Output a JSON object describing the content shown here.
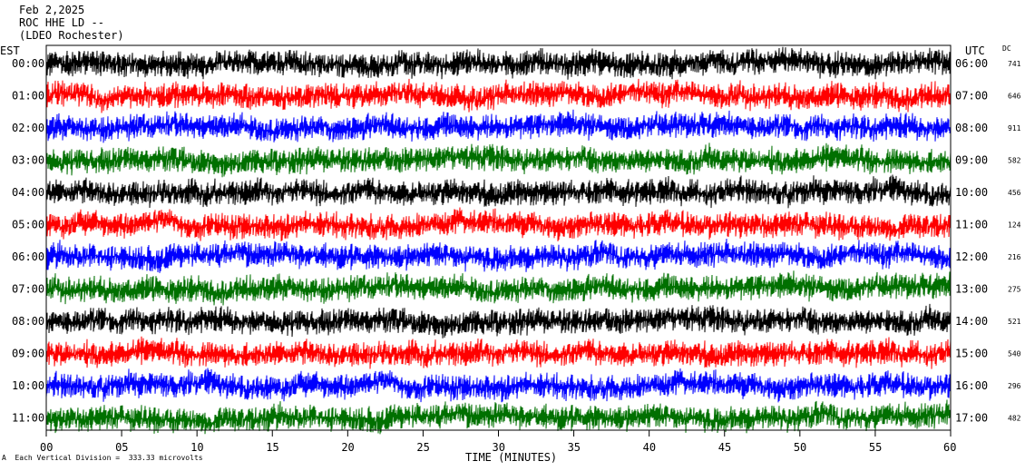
{
  "header": {
    "line1": "Feb 2,2025",
    "line2": "ROC HHE LD --",
    "line3": "(LDEO Rochester)"
  },
  "left_zone": "EST",
  "right_zone": "UTC",
  "dc_header": "DC",
  "footer": {
    "mark": "A",
    "text": "Each Vertical Division =  333.33 microvolts"
  },
  "colors": {
    "cycle": [
      "#000000",
      "#ff0000",
      "#0000ff",
      "#007000"
    ]
  },
  "chart_data": {
    "type": "line",
    "title": "Feb 2,2025 ROC HHE LD -- (LDEO Rochester)",
    "xlabel": "TIME (MINUTES)",
    "xlim": [
      0,
      60
    ],
    "x_ticks": [
      "00",
      "05",
      "10",
      "15",
      "20",
      "25",
      "30",
      "35",
      "40",
      "45",
      "50",
      "55",
      "60"
    ],
    "unit": "333.33 microvolts per vertical division",
    "rows": [
      {
        "est": "00:00",
        "utc": "06:00",
        "dc": "741"
      },
      {
        "est": "01:00",
        "utc": "07:00",
        "dc": "646"
      },
      {
        "est": "02:00",
        "utc": "08:00",
        "dc": "911"
      },
      {
        "est": "03:00",
        "utc": "09:00",
        "dc": "582"
      },
      {
        "est": "04:00",
        "utc": "10:00",
        "dc": "456"
      },
      {
        "est": "05:00",
        "utc": "11:00",
        "dc": "124"
      },
      {
        "est": "06:00",
        "utc": "12:00",
        "dc": "216"
      },
      {
        "est": "07:00",
        "utc": "13:00",
        "dc": "275"
      },
      {
        "est": "08:00",
        "utc": "14:00",
        "dc": "521"
      },
      {
        "est": "09:00",
        "utc": "15:00",
        "dc": "540"
      },
      {
        "est": "10:00",
        "utc": "16:00",
        "dc": "296"
      },
      {
        "est": "11:00",
        "utc": "17:00",
        "dc": "482"
      }
    ]
  }
}
